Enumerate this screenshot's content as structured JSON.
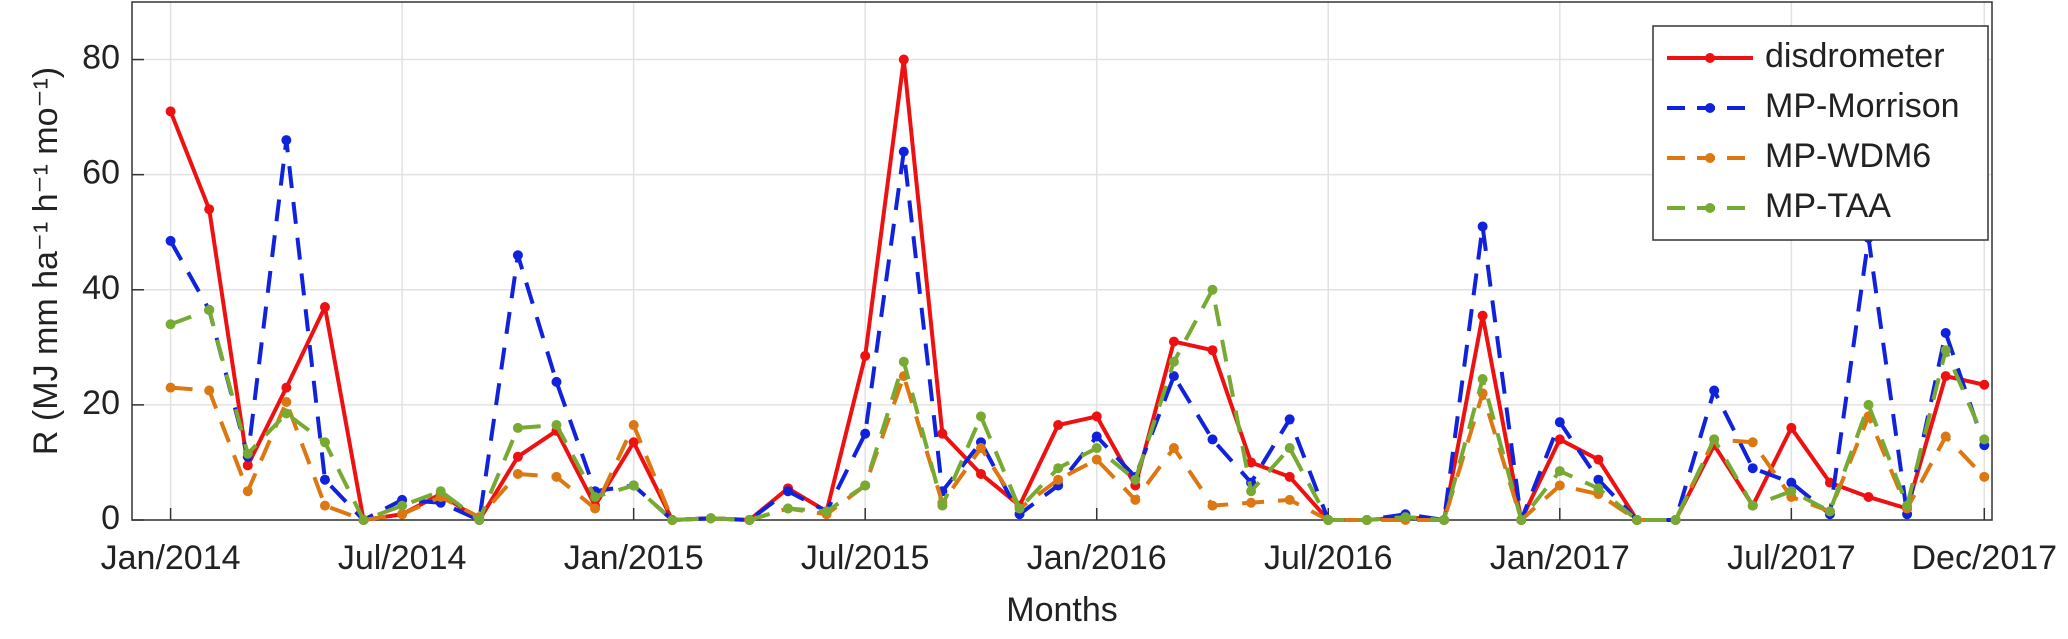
{
  "chart_data": {
    "type": "line",
    "xlabel": "Months",
    "ylabel": "R (MJ mm ha⁻¹ h⁻¹ mo⁻¹)",
    "x": [
      0,
      1,
      2,
      3,
      4,
      5,
      6,
      7,
      8,
      9,
      10,
      11,
      12,
      13,
      14,
      15,
      16,
      17,
      18,
      19,
      20,
      21,
      22,
      23,
      24,
      25,
      26,
      27,
      28,
      29,
      30,
      31,
      32,
      33,
      34,
      35,
      36,
      37,
      38,
      39,
      40,
      41,
      42,
      43,
      44,
      45,
      46,
      47
    ],
    "xlim": [
      -1,
      47.2
    ],
    "xticks": [
      {
        "value": 0,
        "label": "Jan/2014"
      },
      {
        "value": 6,
        "label": "Jul/2014"
      },
      {
        "value": 12,
        "label": "Jan/2015"
      },
      {
        "value": 18,
        "label": "Jul/2015"
      },
      {
        "value": 24,
        "label": "Jan/2016"
      },
      {
        "value": 30,
        "label": "Jul/2016"
      },
      {
        "value": 36,
        "label": "Jan/2017"
      },
      {
        "value": 42,
        "label": "Jul/2017"
      },
      {
        "value": 47,
        "label": "Dec/2017"
      }
    ],
    "ylim": [
      0,
      90
    ],
    "yticks": [
      0,
      20,
      40,
      60,
      80
    ],
    "grid": true,
    "legend": "upper right",
    "series": [
      {
        "name": "disdrometer",
        "color": "#ee1111",
        "linestyle": "solid",
        "values": [
          71,
          54,
          9.5,
          23,
          37,
          0,
          1,
          4.5,
          0,
          11,
          15.5,
          2.5,
          13.5,
          0,
          0.3,
          0,
          5.5,
          1.5,
          28.5,
          80,
          15,
          8,
          2.5,
          16.5,
          18,
          6,
          31,
          29.5,
          10,
          7.5,
          0,
          0,
          0.5,
          0,
          35.5,
          0,
          14,
          10.5,
          0,
          0,
          13,
          2.5,
          16,
          6.5,
          4,
          2,
          25,
          23.5
        ]
      },
      {
        "name": "MP-Morrison",
        "color": "#1122dd",
        "linestyle": "dashed",
        "values": [
          48.5,
          36.5,
          11,
          66,
          7,
          0,
          3.5,
          3,
          0,
          46,
          24,
          5,
          6,
          0,
          0.3,
          0,
          5,
          1.5,
          15,
          64,
          5,
          13.5,
          1,
          6,
          14.5,
          7.5,
          25,
          14,
          6.5,
          17.5,
          0,
          0,
          1,
          0,
          51,
          0,
          17,
          7,
          0,
          0,
          22.5,
          9,
          6.5,
          1,
          49,
          1,
          32.5,
          13
        ]
      },
      {
        "name": "MP-WDM6",
        "color": "#dd7711",
        "linestyle": "dashed",
        "values": [
          23,
          22.5,
          5,
          20.5,
          2.5,
          0,
          1,
          4,
          0.5,
          8,
          7.5,
          2,
          16.5,
          0,
          0.3,
          0,
          2,
          1,
          6,
          25,
          3,
          12.5,
          2,
          7,
          10.5,
          3.5,
          12.5,
          2.5,
          3,
          3.5,
          0,
          0,
          0,
          0,
          22,
          0,
          6,
          4.5,
          0,
          0,
          14,
          13.5,
          4,
          1.5,
          18,
          2,
          14.5,
          7.5
        ]
      },
      {
        "name": "MP-TAA",
        "color": "#77aa33",
        "linestyle": "dashed",
        "values": [
          34,
          36.5,
          11.5,
          18.5,
          13.5,
          0,
          2.5,
          5,
          0,
          16,
          16.5,
          4,
          6,
          0,
          0.3,
          0,
          2,
          1.5,
          6,
          27.5,
          2.5,
          18,
          2,
          9,
          12.5,
          7,
          27.5,
          40,
          5,
          12.5,
          0,
          0,
          0.5,
          0,
          24.5,
          0,
          8.5,
          5.5,
          0,
          0,
          14,
          2.5,
          5,
          1.5,
          20,
          2.5,
          29.5,
          14
        ]
      }
    ]
  }
}
